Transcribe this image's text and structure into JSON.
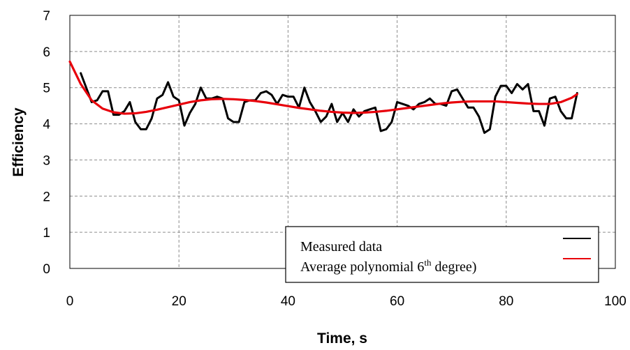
{
  "chart_data": {
    "type": "line",
    "xlabel": "Time, s",
    "ylabel": "Efficiency",
    "xlim": [
      0,
      100
    ],
    "ylim": [
      0,
      7
    ],
    "x_ticks": [
      "0",
      "20",
      "40",
      "60",
      "80",
      "100"
    ],
    "y_ticks": [
      "0",
      "1",
      "2",
      "3",
      "4",
      "5",
      "6",
      "7"
    ],
    "grid": "dashed",
    "legend_position": "bottom-right",
    "series": [
      {
        "name": "Measured data",
        "color": "#000000",
        "x": [
          2,
          3,
          4,
          5,
          6,
          7,
          8,
          9,
          10,
          11,
          12,
          13,
          14,
          15,
          16,
          17,
          18,
          19,
          20,
          21,
          22,
          23,
          24,
          25,
          26,
          27,
          28,
          29,
          30,
          31,
          32,
          33,
          34,
          35,
          36,
          37,
          38,
          39,
          40,
          41,
          42,
          43,
          44,
          45,
          46,
          47,
          48,
          49,
          50,
          51,
          52,
          53,
          54,
          55,
          56,
          57,
          58,
          59,
          60,
          61,
          62,
          63,
          64,
          65,
          66,
          67,
          68,
          69,
          70,
          71,
          72,
          73,
          74,
          75,
          76,
          77,
          78,
          79,
          80,
          81,
          82,
          83,
          84,
          85,
          86,
          87,
          88,
          89,
          90,
          91,
          92,
          93
        ],
        "y": [
          5.4,
          5.0,
          4.6,
          4.65,
          4.9,
          4.9,
          4.25,
          4.25,
          4.35,
          4.6,
          4.05,
          3.85,
          3.85,
          4.15,
          4.7,
          4.8,
          5.15,
          4.75,
          4.65,
          3.95,
          4.3,
          4.55,
          5.0,
          4.7,
          4.7,
          4.75,
          4.7,
          4.15,
          4.05,
          4.05,
          4.6,
          4.65,
          4.65,
          4.85,
          4.9,
          4.8,
          4.55,
          4.8,
          4.75,
          4.75,
          4.45,
          5.0,
          4.6,
          4.35,
          4.05,
          4.2,
          4.55,
          4.05,
          4.3,
          4.05,
          4.4,
          4.2,
          4.35,
          4.4,
          4.45,
          3.8,
          3.85,
          4.05,
          4.6,
          4.55,
          4.5,
          4.4,
          4.55,
          4.6,
          4.7,
          4.55,
          4.55,
          4.5,
          4.9,
          4.95,
          4.7,
          4.45,
          4.45,
          4.2,
          3.75,
          3.85,
          4.75,
          5.05,
          5.05,
          4.85,
          5.1,
          4.95,
          5.1,
          4.35,
          4.35,
          3.95,
          4.7,
          4.75,
          4.35,
          4.15,
          4.15,
          4.85
        ]
      },
      {
        "name": "Average polynomial 6th degree)",
        "color": "#e8000b",
        "x": [
          0,
          2,
          4,
          6,
          8,
          10,
          12,
          14,
          16,
          18,
          20,
          22,
          24,
          26,
          28,
          30,
          32,
          34,
          36,
          38,
          40,
          42,
          44,
          46,
          48,
          50,
          52,
          54,
          56,
          58,
          60,
          62,
          64,
          66,
          68,
          70,
          72,
          74,
          76,
          78,
          80,
          82,
          84,
          86,
          88,
          90,
          92,
          93
        ],
        "y": [
          5.72,
          5.1,
          4.65,
          4.42,
          4.32,
          4.28,
          4.29,
          4.33,
          4.39,
          4.46,
          4.53,
          4.6,
          4.65,
          4.68,
          4.69,
          4.68,
          4.66,
          4.63,
          4.59,
          4.54,
          4.49,
          4.44,
          4.4,
          4.36,
          4.33,
          4.31,
          4.3,
          4.31,
          4.33,
          4.36,
          4.4,
          4.44,
          4.48,
          4.52,
          4.56,
          4.59,
          4.61,
          4.62,
          4.62,
          4.62,
          4.6,
          4.58,
          4.56,
          4.55,
          4.55,
          4.6,
          4.72,
          4.82
        ]
      }
    ]
  },
  "legend": {
    "measured": "Measured data",
    "poly_before": "Average polynomial 6",
    "poly_sup": "th",
    "poly_after": " degree)"
  }
}
